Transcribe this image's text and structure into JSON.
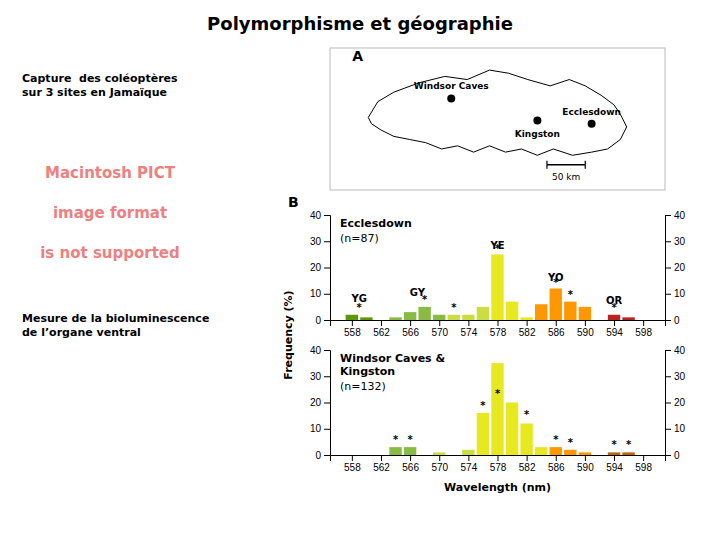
{
  "title": "Polymorphisme et géographie",
  "annotations": [
    {
      "lines": [
        "Capture  des coléoptères",
        "sur 3 sites en Jamaïque"
      ]
    },
    {
      "lines": [
        "Macintosh PICT",
        "image format",
        "is not supported"
      ],
      "color": "#f08080"
    },
    {
      "lines": [
        "Mesure de la bioluminescence",
        "de l’organe ventral"
      ]
    },
    {
      "lines": [
        "B"
      ]
    }
  ],
  "chart_data": [
    {
      "type": "map",
      "x": [
        1.2,
        1.5,
        2.0,
        2.8,
        3.6,
        4.3,
        5.0,
        5.6,
        6.2,
        6.9,
        7.5,
        8.0,
        8.5,
        8.9,
        9.1,
        9.3,
        9.1,
        8.7,
        8.2,
        7.6,
        7.0,
        6.5,
        6.0,
        5.5,
        5.0,
        4.5,
        4.0,
        3.5,
        3.0,
        2.5,
        2.0,
        1.6,
        1.3,
        1.2
      ],
      "values": [
        2.8,
        3.3,
        3.6,
        3.9,
        4.1,
        4.0,
        4.3,
        4.2,
        4.0,
        3.8,
        4.0,
        3.8,
        3.5,
        3.2,
        2.9,
        2.5,
        2.1,
        1.8,
        1.7,
        1.6,
        1.8,
        1.6,
        1.8,
        1.7,
        1.9,
        1.7,
        1.9,
        1.8,
        2.0,
        2.1,
        2.2,
        2.4,
        2.6,
        2.8
      ],
      "xlim": [
        0,
        10.5
      ],
      "ylim": [
        0.5,
        5.0
      ],
      "tick_labels": false,
      "points": [
        {
          "name": "Windsor Caves",
          "x": 3.8,
          "y": 3.4
        },
        {
          "name": "Kingston",
          "x": 6.5,
          "y": 2.7
        },
        {
          "name": "Ecclesdown",
          "x": 8.2,
          "y": 2.6
        }
      ],
      "scale_bar": {
        "label": "50 km",
        "x": [
          6.8,
          8.0
        ],
        "y": 1.3
      },
      "annotations": [
        {
          "text": "A",
          "x": 0.7,
          "y": 4.6
        }
      ]
    },
    {
      "type": "bar",
      "title": "Ecclesdown",
      "subtitle": "(n=87)",
      "x": [
        558,
        560,
        564,
        566,
        568,
        570,
        572,
        574,
        576,
        578,
        580,
        582,
        584,
        586,
        588,
        590,
        594,
        596
      ],
      "values": [
        2,
        1,
        1,
        3,
        5,
        2,
        2,
        2,
        5,
        25,
        7,
        1,
        6,
        12,
        7,
        5,
        2,
        1
      ],
      "colors": [
        "#5a9a00",
        "#5a9a00",
        "#88bb44",
        "#88bb44",
        "#88bb44",
        "#88bb44",
        "#ccdd44",
        "#ccdd44",
        "#ccdd44",
        "#e8e820",
        "#e8e820",
        "#e8e820",
        "#ff9800",
        "#ff9800",
        "#ff9800",
        "#ff9800",
        "#bb2222",
        "#bb2222"
      ],
      "xlim": [
        555,
        601
      ],
      "xticks": [
        558,
        562,
        566,
        570,
        574,
        578,
        582,
        586,
        590,
        594,
        598
      ],
      "ylim": [
        0,
        40
      ],
      "yticks": [
        0,
        10,
        20,
        30,
        40
      ],
      "y2lim": [
        0,
        40
      ],
      "y2ticks": [
        0,
        10,
        20,
        30,
        40
      ],
      "annotations": [
        {
          "text": "YG",
          "x": 559,
          "y": 7
        },
        {
          "text": "GY",
          "x": 567,
          "y": 9
        },
        {
          "text": "YE",
          "x": 578,
          "y": 27
        },
        {
          "text": "YO",
          "x": 586,
          "y": 15
        },
        {
          "text": "OR",
          "x": 594,
          "y": 6
        },
        {
          "text": "*",
          "x": 559,
          "y": 3.5
        },
        {
          "text": "*",
          "x": 568,
          "y": 6.5
        },
        {
          "text": "*",
          "x": 572,
          "y": 3.5
        },
        {
          "text": "*",
          "x": 578,
          "y": 26
        },
        {
          "text": "*",
          "x": 586,
          "y": 13
        },
        {
          "text": "*",
          "x": 588,
          "y": 8.5
        },
        {
          "text": "*",
          "x": 594,
          "y": 3.5
        }
      ]
    },
    {
      "type": "bar",
      "title": [
        "Windsor Caves &",
        "Kingston"
      ],
      "subtitle": "(n=132)",
      "x": [
        564,
        566,
        570,
        574,
        576,
        578,
        580,
        582,
        584,
        586,
        588,
        590,
        594,
        596
      ],
      "values": [
        3,
        3,
        1,
        2,
        16,
        35,
        20,
        12,
        3,
        3,
        2,
        1,
        1,
        1
      ],
      "colors": [
        "#88bb44",
        "#88bb44",
        "#ccdd44",
        "#ccdd44",
        "#e8e820",
        "#e8e820",
        "#e8e820",
        "#e8e820",
        "#e8e820",
        "#ff9800",
        "#ff9800",
        "#ff9800",
        "#bb6600",
        "#bb6600"
      ],
      "xlim": [
        555,
        601
      ],
      "xticks": [
        558,
        562,
        566,
        570,
        574,
        578,
        582,
        586,
        590,
        594,
        598
      ],
      "ylim": [
        0,
        40
      ],
      "yticks": [
        0,
        10,
        20,
        30,
        40
      ],
      "y2lim": [
        0,
        40
      ],
      "y2ticks": [
        0,
        10,
        20,
        30,
        40
      ],
      "xlabel": "Wavelength (nm)",
      "ylabel": "Frequency (%)",
      "annotations": [
        {
          "text": "*",
          "x": 564,
          "y": 4.5
        },
        {
          "text": "*",
          "x": 566,
          "y": 4.5
        },
        {
          "text": "*",
          "x": 576,
          "y": 17.5
        },
        {
          "text": "*",
          "x": 578,
          "y": 22
        },
        {
          "text": "*",
          "x": 582,
          "y": 14
        },
        {
          "text": "*",
          "x": 586,
          "y": 4.5
        },
        {
          "text": "*",
          "x": 588,
          "y": 3.5
        },
        {
          "text": "*",
          "x": 594,
          "y": 2.5
        },
        {
          "text": "*",
          "x": 596,
          "y": 2.5
        }
      ]
    }
  ]
}
